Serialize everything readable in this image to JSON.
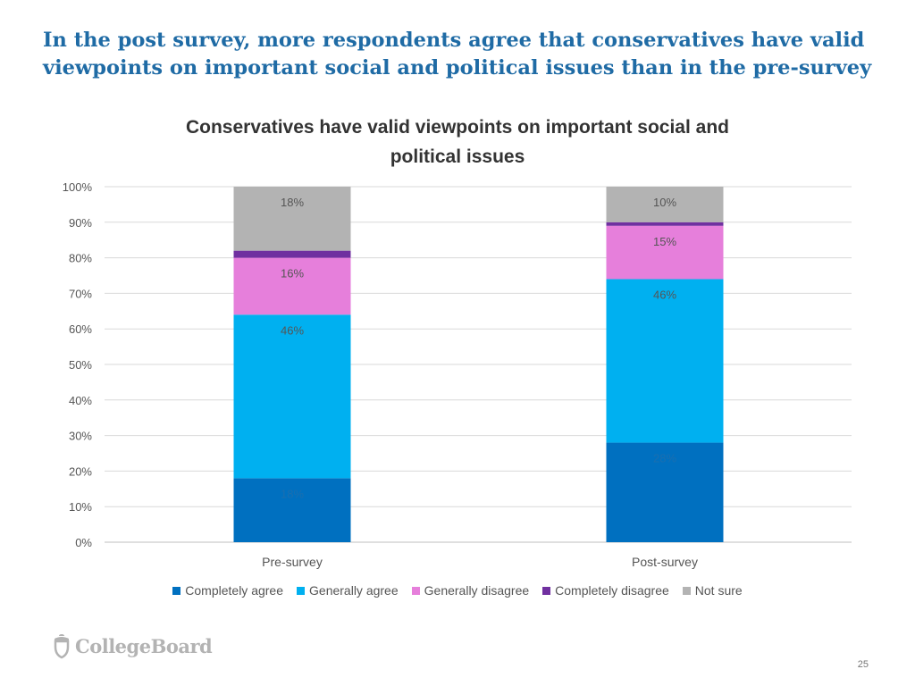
{
  "slide": {
    "title_line1": "In the post survey, more respondents agree that conservatives have valid",
    "title_line2": "viewpoints on important social and political issues than in the pre-survey",
    "logo_text": "CollegeBoard",
    "page_number": "25"
  },
  "chart_data": {
    "type": "bar",
    "stacked": true,
    "title_line1": "Conservatives have valid viewpoints on important social and",
    "title_line2": "political issues",
    "categories": [
      "Pre-survey",
      "Post-survey"
    ],
    "y_ticks": [
      "0%",
      "10%",
      "20%",
      "30%",
      "40%",
      "50%",
      "60%",
      "70%",
      "80%",
      "90%",
      "100%"
    ],
    "ylim": [
      0,
      100
    ],
    "grid": true,
    "legend_position": "bottom",
    "series": [
      {
        "name": "Completely agree",
        "color": "#0070c0",
        "values": [
          18,
          28
        ],
        "labels": [
          "18%",
          "28%"
        ],
        "label_color": "#1a6fb0"
      },
      {
        "name": "Generally agree",
        "color": "#00b0f0",
        "values": [
          46,
          46
        ],
        "labels": [
          "46%",
          "46%"
        ],
        "label_color": "#555555"
      },
      {
        "name": "Generally disagree",
        "color": "#e67fdb",
        "values": [
          16,
          15
        ],
        "labels": [
          "16%",
          "15%"
        ],
        "label_color": "#555555"
      },
      {
        "name": "Completely disagree",
        "color": "#7030a0",
        "values": [
          2,
          1
        ],
        "labels": [
          "",
          ""
        ],
        "label_color": "#555555"
      },
      {
        "name": "Not sure",
        "color": "#b3b3b3",
        "values": [
          18,
          10
        ],
        "labels": [
          "18%",
          "10%"
        ],
        "label_color": "#555555"
      }
    ]
  }
}
